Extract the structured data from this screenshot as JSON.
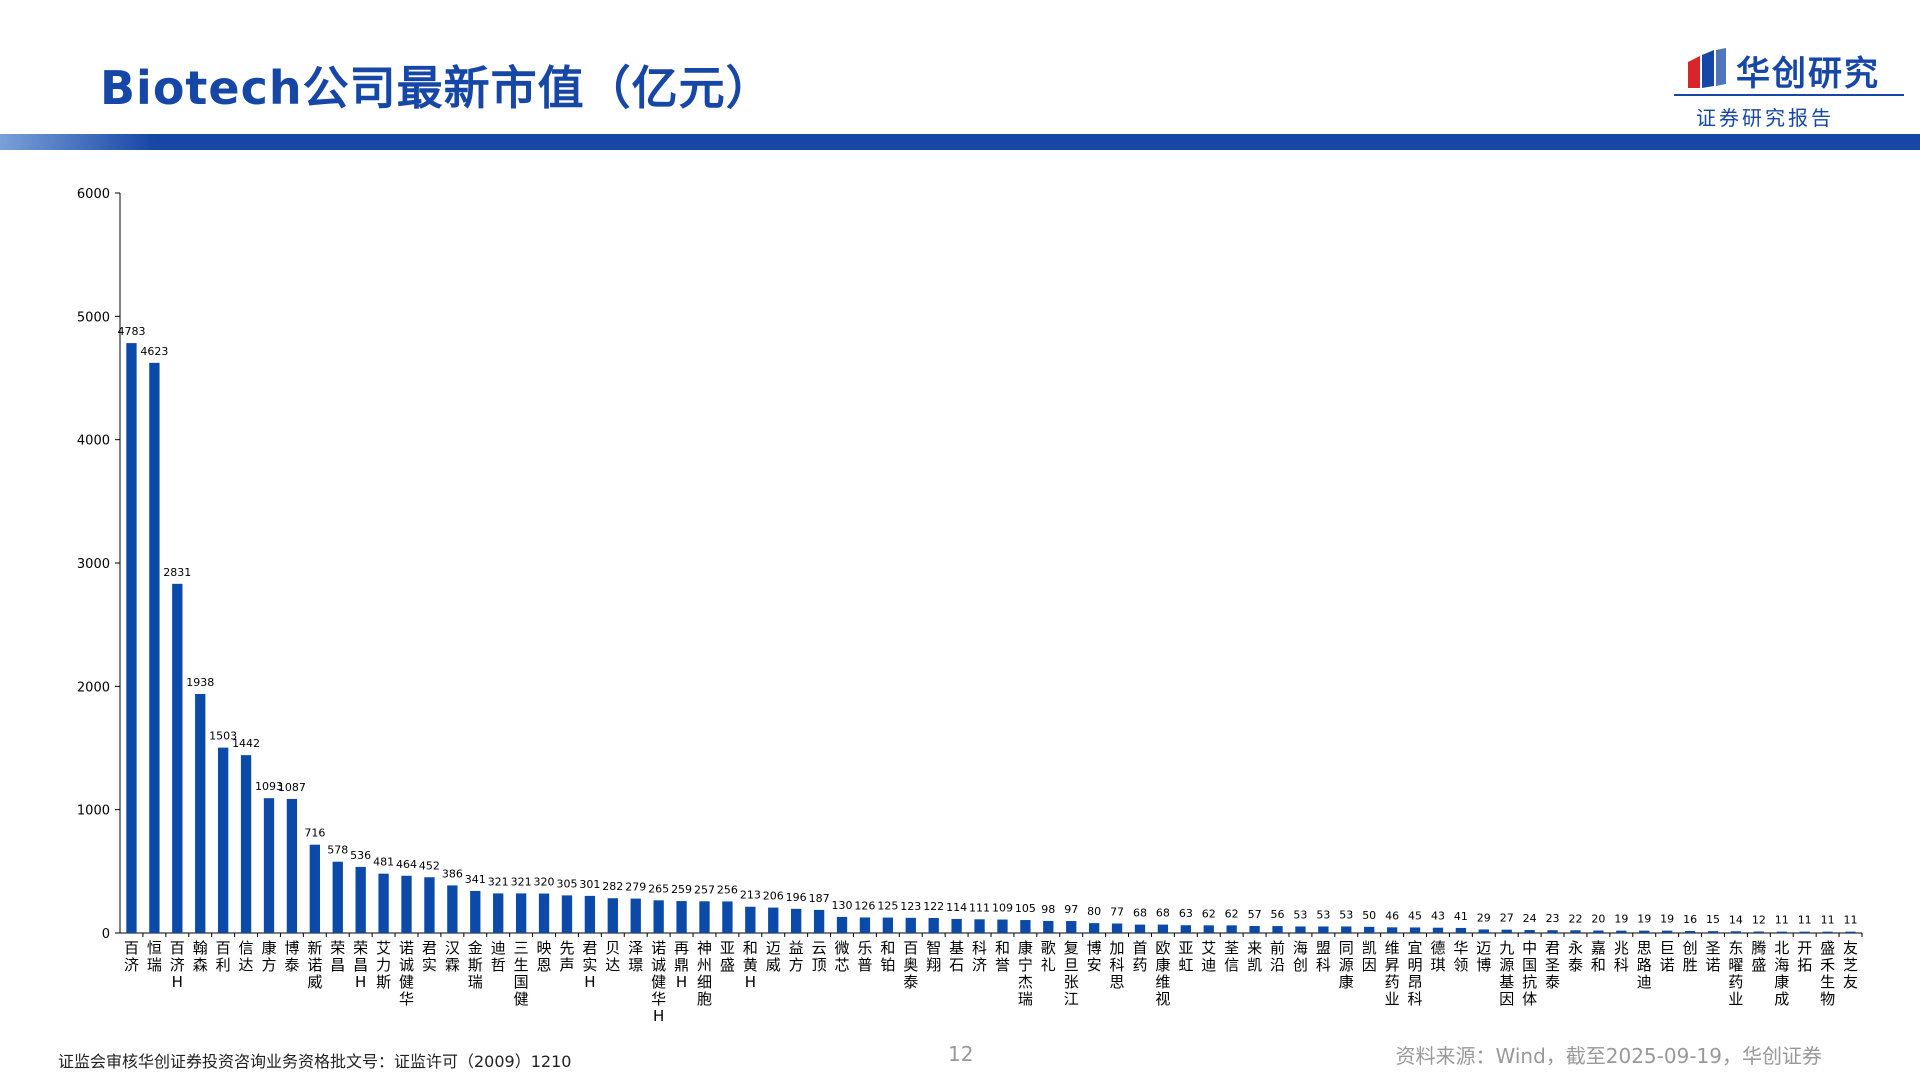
{
  "header": {
    "title": "Biotech公司最新市值（亿元）",
    "brand_name": "华创研究",
    "brand_sub": "证券研究报告"
  },
  "footer": {
    "license": "证监会审核华创证券投资咨询业务资格批文号：证监许可（2009）1210",
    "page": "12",
    "source": "资料来源：Wind，截至2025-09-19，华创证券"
  },
  "colors": {
    "bar": "#0b4aa8",
    "brand": "#1747a6",
    "mark_red": "#d9252a"
  },
  "chart_data": {
    "type": "bar",
    "title": "",
    "xlabel": "",
    "ylabel": "",
    "ylim": [
      0,
      6000
    ],
    "yticks": [
      0,
      1000,
      2000,
      3000,
      4000,
      5000,
      6000
    ],
    "grid": false,
    "categories": [
      "百济",
      "恒瑞",
      "百济H",
      "翰森",
      "百利",
      "信达",
      "康方",
      "博泰",
      "新诺威",
      "荣昌",
      "荣昌H",
      "艾力斯",
      "诺诚健华",
      "君实",
      "汉霖",
      "金斯瑞",
      "迪哲",
      "三生国健",
      "映恩",
      "先声",
      "君实H",
      "贝达",
      "泽璟",
      "诺诚健华H",
      "再鼎H",
      "神州细胞",
      "亚盛",
      "和黄H",
      "迈威",
      "益方",
      "云顶",
      "微芯",
      "乐普",
      "和铂",
      "百奥泰",
      "智翔",
      "基石",
      "科济",
      "和誉",
      "康宁杰瑞",
      "歌礼",
      "复旦张江",
      "博安",
      "加科思",
      "首药",
      "欧康维视",
      "亚虹",
      "艾迪",
      "荃信",
      "来凯",
      "前沿",
      "海创",
      "盟科",
      "同源康",
      "凯因",
      "维昇药业",
      "宜明昂科",
      "德琪",
      "华领",
      "迈博",
      "九源基因",
      "中国抗体",
      "君圣泰",
      "永泰",
      "嘉和",
      "兆科",
      "思路迪",
      "巨诺",
      "创胜",
      "圣诺",
      "东曜药业",
      "腾盛",
      "北海康成",
      "开拓",
      "盛禾生物",
      "友芝友"
    ],
    "values": [
      4783,
      4623,
      2831,
      1938,
      1503,
      1442,
      1093,
      1087,
      716,
      578,
      536,
      481,
      464,
      452,
      386,
      341,
      321,
      321,
      320,
      305,
      301,
      282,
      279,
      265,
      259,
      257,
      256,
      213,
      206,
      196,
      187,
      130,
      126,
      125,
      123,
      122,
      114,
      111,
      109,
      105,
      98,
      97,
      80,
      77,
      68,
      68,
      63,
      62,
      62,
      57,
      56,
      53,
      53,
      53,
      50,
      46,
      45,
      43,
      41,
      29,
      27,
      24,
      23,
      22,
      20,
      19,
      19,
      19,
      16,
      15,
      14,
      12,
      11,
      11,
      11,
      11
    ]
  }
}
